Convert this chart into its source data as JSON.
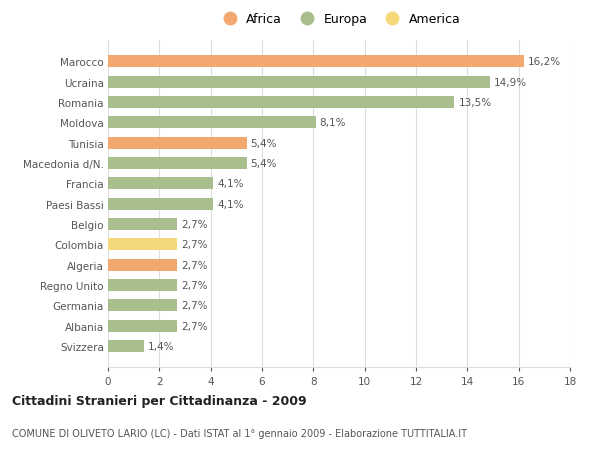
{
  "countries": [
    "Svizzera",
    "Albania",
    "Germania",
    "Regno Unito",
    "Algeria",
    "Colombia",
    "Belgio",
    "Paesi Bassi",
    "Francia",
    "Macedonia d/N.",
    "Tunisia",
    "Moldova",
    "Romania",
    "Ucraina",
    "Marocco"
  ],
  "values": [
    1.4,
    2.7,
    2.7,
    2.7,
    2.7,
    2.7,
    2.7,
    4.1,
    4.1,
    5.4,
    5.4,
    8.1,
    13.5,
    14.9,
    16.2
  ],
  "labels": [
    "1,4%",
    "2,7%",
    "2,7%",
    "2,7%",
    "2,7%",
    "2,7%",
    "2,7%",
    "4,1%",
    "4,1%",
    "5,4%",
    "5,4%",
    "8,1%",
    "13,5%",
    "14,9%",
    "16,2%"
  ],
  "continents": [
    "Europa",
    "Europa",
    "Europa",
    "Europa",
    "Africa",
    "America",
    "Europa",
    "Europa",
    "Europa",
    "Europa",
    "Africa",
    "Europa",
    "Europa",
    "Europa",
    "Africa"
  ],
  "colors": {
    "Africa": "#F2A86F",
    "Europa": "#A8BE8C",
    "America": "#F5D87A"
  },
  "xlim": [
    0,
    18
  ],
  "xticks": [
    0,
    2,
    4,
    6,
    8,
    10,
    12,
    14,
    16,
    18
  ],
  "title": "Cittadini Stranieri per Cittadinanza - 2009",
  "subtitle": "COMUNE DI OLIVETO LARIO (LC) - Dati ISTAT al 1° gennaio 2009 - Elaborazione TUTTITALIA.IT",
  "background_color": "#FFFFFF",
  "grid_color": "#DDDDDD",
  "text_color": "#555555",
  "label_fontsize": 7.5,
  "tick_fontsize": 7.5,
  "bar_height": 0.6,
  "legend_order": [
    "Africa",
    "Europa",
    "America"
  ]
}
